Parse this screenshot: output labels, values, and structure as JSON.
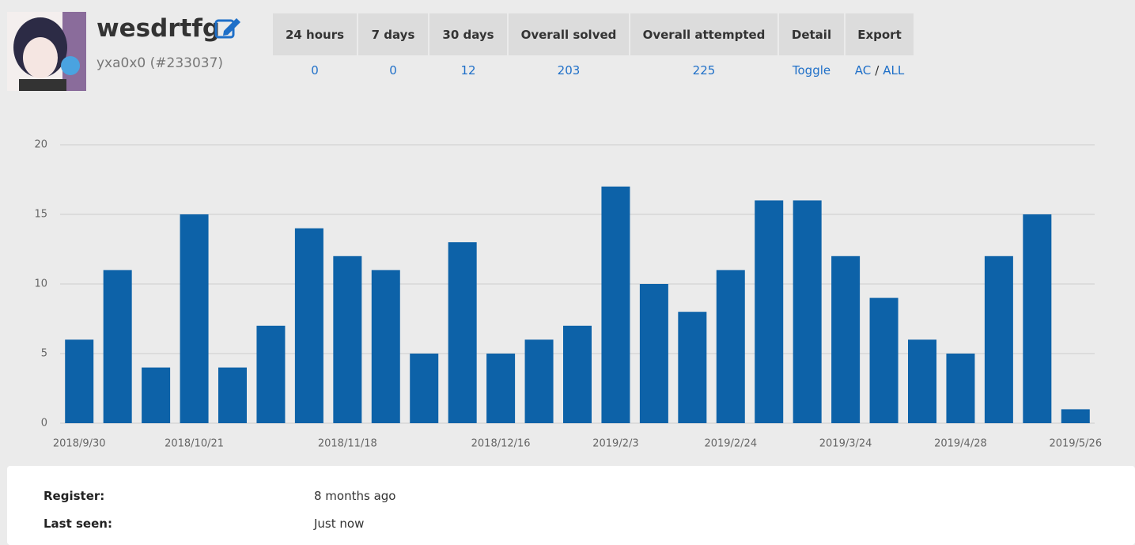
{
  "header": {
    "name": "wesdrtfg",
    "handle": "yxa0x0 (#233037)"
  },
  "stats": {
    "headers": [
      "24 hours",
      "7 days",
      "30 days",
      "Overall solved",
      "Overall attempted",
      "Detail",
      "Export"
    ],
    "values": [
      "0",
      "0",
      "12",
      "203",
      "225",
      "Toggle"
    ],
    "export": {
      "ac": "AC",
      "separator": "/",
      "all": "ALL"
    }
  },
  "chart_data": {
    "type": "bar",
    "color": "#0d62a8",
    "grid": true,
    "categories": [
      "2018/9/30",
      null,
      null,
      "2018/10/21",
      null,
      null,
      null,
      "2018/11/18",
      null,
      null,
      null,
      "2018/12/16",
      null,
      null,
      "2019/2/3",
      null,
      null,
      "2019/2/24",
      null,
      null,
      "2019/3/24",
      null,
      null,
      "2019/4/28",
      null,
      null,
      "2019/5/26"
    ],
    "values": [
      6,
      11,
      4,
      15,
      4,
      7,
      14,
      12,
      11,
      5,
      13,
      5,
      6,
      7,
      17,
      10,
      8,
      11,
      16,
      16,
      12,
      9,
      6,
      5,
      12,
      15,
      1
    ],
    "ylim": [
      0,
      20
    ],
    "yticks": [
      0,
      5,
      10,
      15,
      20
    ]
  },
  "info": {
    "rows": [
      [
        "Register:",
        "8 months ago"
      ],
      [
        "Last seen:",
        "Just now"
      ]
    ]
  }
}
